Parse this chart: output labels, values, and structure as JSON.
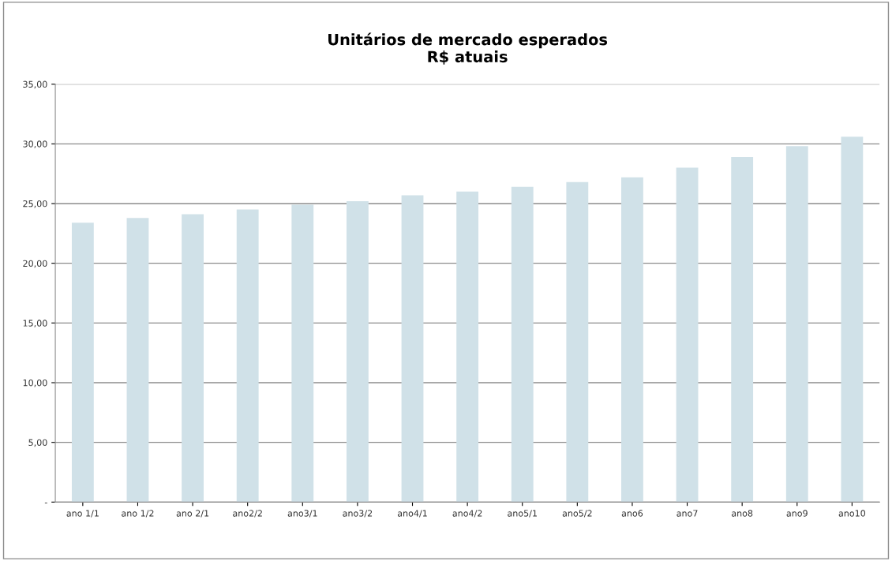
{
  "chart_data": {
    "type": "bar",
    "title": "Unitários de mercado esperados\nR$ atuais",
    "categories": [
      "ano 1/1",
      "ano 1/2",
      "ano 2/1",
      "ano2/2",
      "ano3/1",
      "ano3/2",
      "ano4/1",
      "ano4/2",
      "ano5/1",
      "ano5/2",
      "ano6",
      "ano7",
      "ano8",
      "ano9",
      "ano10"
    ],
    "values": [
      23.4,
      23.8,
      24.1,
      24.5,
      24.9,
      25.2,
      25.7,
      26.0,
      26.4,
      26.8,
      27.2,
      28.0,
      28.9,
      29.8,
      30.6
    ],
    "color": "#d0e1e8",
    "ylim": [
      0,
      35
    ],
    "yticks": [
      {
        "value": 0,
        "label": "-"
      },
      {
        "value": 5,
        "label": "5,00"
      },
      {
        "value": 10,
        "label": "10,00"
      },
      {
        "value": 15,
        "label": "15,00"
      },
      {
        "value": 20,
        "label": "20,00"
      },
      {
        "value": 25,
        "label": "25,00"
      },
      {
        "value": 30,
        "label": "30,00"
      },
      {
        "value": 35,
        "label": "35,00"
      }
    ],
    "grid": "y",
    "legend": false
  }
}
